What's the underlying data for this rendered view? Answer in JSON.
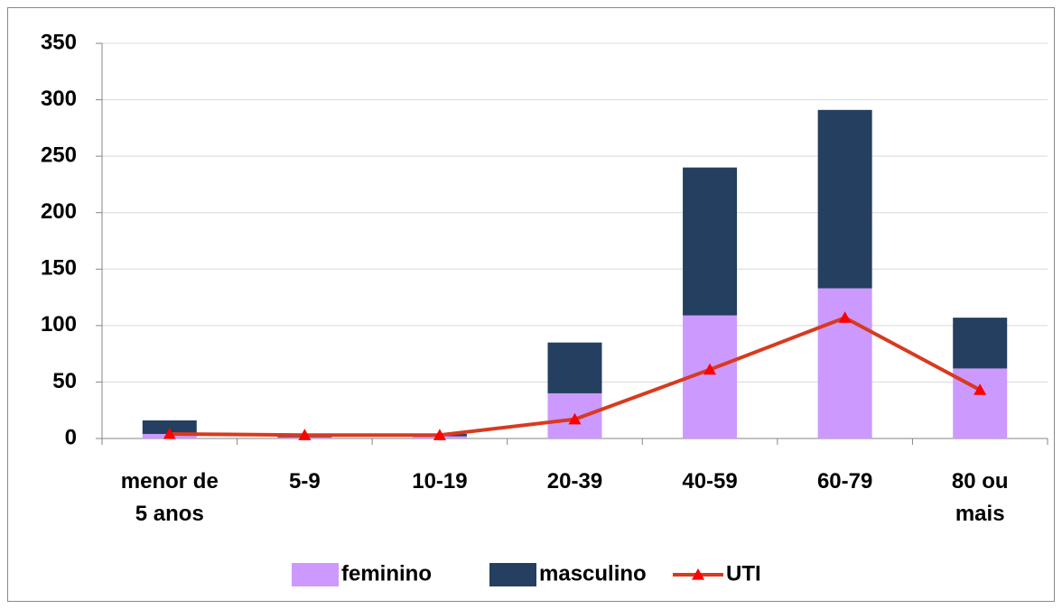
{
  "chart_data": {
    "type": "bar",
    "stacked": true,
    "categories": [
      "menor de 5 anos",
      "5-9",
      "10-19",
      "20-39",
      "40-59",
      "60-79",
      "80 ou mais"
    ],
    "series": [
      {
        "name": "feminino",
        "color": "#cc99ff",
        "type": "bar",
        "values": [
          4,
          1,
          2,
          40,
          109,
          133,
          62
        ]
      },
      {
        "name": "masculino",
        "color": "#243f60",
        "type": "bar",
        "values": [
          12,
          1,
          2,
          45,
          131,
          158,
          45
        ]
      },
      {
        "name": "UTI",
        "color": "#d83a1f",
        "marker_color": "#ff0000",
        "type": "line",
        "values": [
          4,
          3,
          3,
          17,
          61,
          107,
          43
        ]
      }
    ],
    "ylim": [
      0,
      350
    ],
    "yticks": [
      0,
      50,
      100,
      150,
      200,
      250,
      300,
      350
    ],
    "grid": true,
    "legend": "bottom"
  }
}
